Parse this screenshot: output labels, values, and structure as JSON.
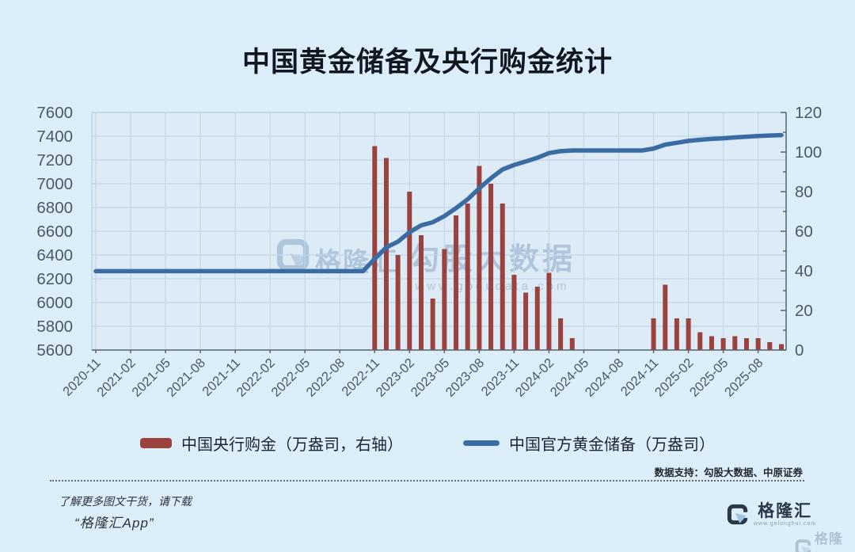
{
  "title": "中国黄金储备及央行购金统计",
  "legend": {
    "purchases_label": "中国央行购金（万盎司，右轴）",
    "reserves_label": "中国官方黄金储备（万盎司）"
  },
  "source_note": "数据支持：勾股大数据、中原证券",
  "footer": {
    "line1": "了解更多图文干货，请下载",
    "line2": "“格隆汇App”"
  },
  "watermark_center": {
    "brand": "格隆汇",
    "big": "勾股大数据",
    "url": "www.gogudata.com"
  },
  "logo": {
    "name": "格隆汇",
    "url": "www.gelonghui.com"
  },
  "colors": {
    "bar": "#9c423e",
    "line": "#3a6ca3",
    "page_bg": "#ddeefb",
    "plot_bg": "#dcebf6",
    "grid": "#c2d6e8",
    "axis": "#5a6570",
    "axis_text": "#4b5866"
  },
  "chart_data": {
    "type": "bar+line",
    "x": [
      "2020-11",
      "2020-12",
      "2021-01",
      "2021-02",
      "2021-03",
      "2021-04",
      "2021-05",
      "2021-06",
      "2021-07",
      "2021-08",
      "2021-09",
      "2021-10",
      "2021-11",
      "2021-12",
      "2022-01",
      "2022-02",
      "2022-03",
      "2022-04",
      "2022-05",
      "2022-06",
      "2022-07",
      "2022-08",
      "2022-09",
      "2022-10",
      "2022-11",
      "2022-12",
      "2023-01",
      "2023-02",
      "2023-03",
      "2023-04",
      "2023-05",
      "2023-06",
      "2023-07",
      "2023-08",
      "2023-09",
      "2023-10",
      "2023-11",
      "2023-12",
      "2024-01",
      "2024-02",
      "2024-03",
      "2024-04",
      "2024-05",
      "2024-06",
      "2024-07",
      "2024-08",
      "2024-09",
      "2024-10",
      "2024-11",
      "2024-12",
      "2025-01",
      "2025-02",
      "2025-03",
      "2025-04",
      "2025-05",
      "2025-06",
      "2025-07",
      "2025-08",
      "2025-09",
      "2025-10"
    ],
    "x_tick_every": 3,
    "series": [
      {
        "name": "中国央行购金（万盎司，右轴）",
        "type": "bar",
        "axis": "right",
        "color": "#9c423e",
        "values": [
          0,
          0,
          0,
          0,
          0,
          0,
          0,
          0,
          0,
          0,
          0,
          0,
          0,
          0,
          0,
          0,
          0,
          0,
          0,
          0,
          0,
          0,
          0,
          0,
          103,
          97,
          48,
          80,
          58,
          26,
          51,
          68,
          74,
          93,
          84,
          74,
          38,
          29,
          32,
          39,
          16,
          6,
          0,
          0,
          0,
          0,
          0,
          0,
          16,
          33,
          16,
          16,
          9,
          7,
          6,
          7,
          6,
          6,
          4,
          3
        ]
      },
      {
        "name": "中国官方黄金储备（万盎司）",
        "type": "line",
        "axis": "left",
        "color": "#3a6ca3",
        "values": [
          6264,
          6264,
          6264,
          6264,
          6264,
          6264,
          6264,
          6264,
          6264,
          6264,
          6264,
          6264,
          6264,
          6264,
          6264,
          6264,
          6264,
          6264,
          6264,
          6264,
          6264,
          6264,
          6264,
          6264,
          6367,
          6464,
          6512,
          6592,
          6650,
          6676,
          6727,
          6795,
          6869,
          6962,
          7046,
          7120,
          7158,
          7187,
          7219,
          7258,
          7274,
          7280,
          7280,
          7280,
          7280,
          7280,
          7280,
          7280,
          7296,
          7329,
          7345,
          7361,
          7370,
          7377,
          7383,
          7390,
          7396,
          7402,
          7406,
          7409
        ]
      }
    ],
    "left_axis": {
      "min": 5600,
      "max": 7600,
      "step": 200
    },
    "right_axis": {
      "min": 0,
      "max": 120,
      "step": 20,
      "minor_step": 10
    },
    "grid": true,
    "legend_position": "bottom"
  }
}
